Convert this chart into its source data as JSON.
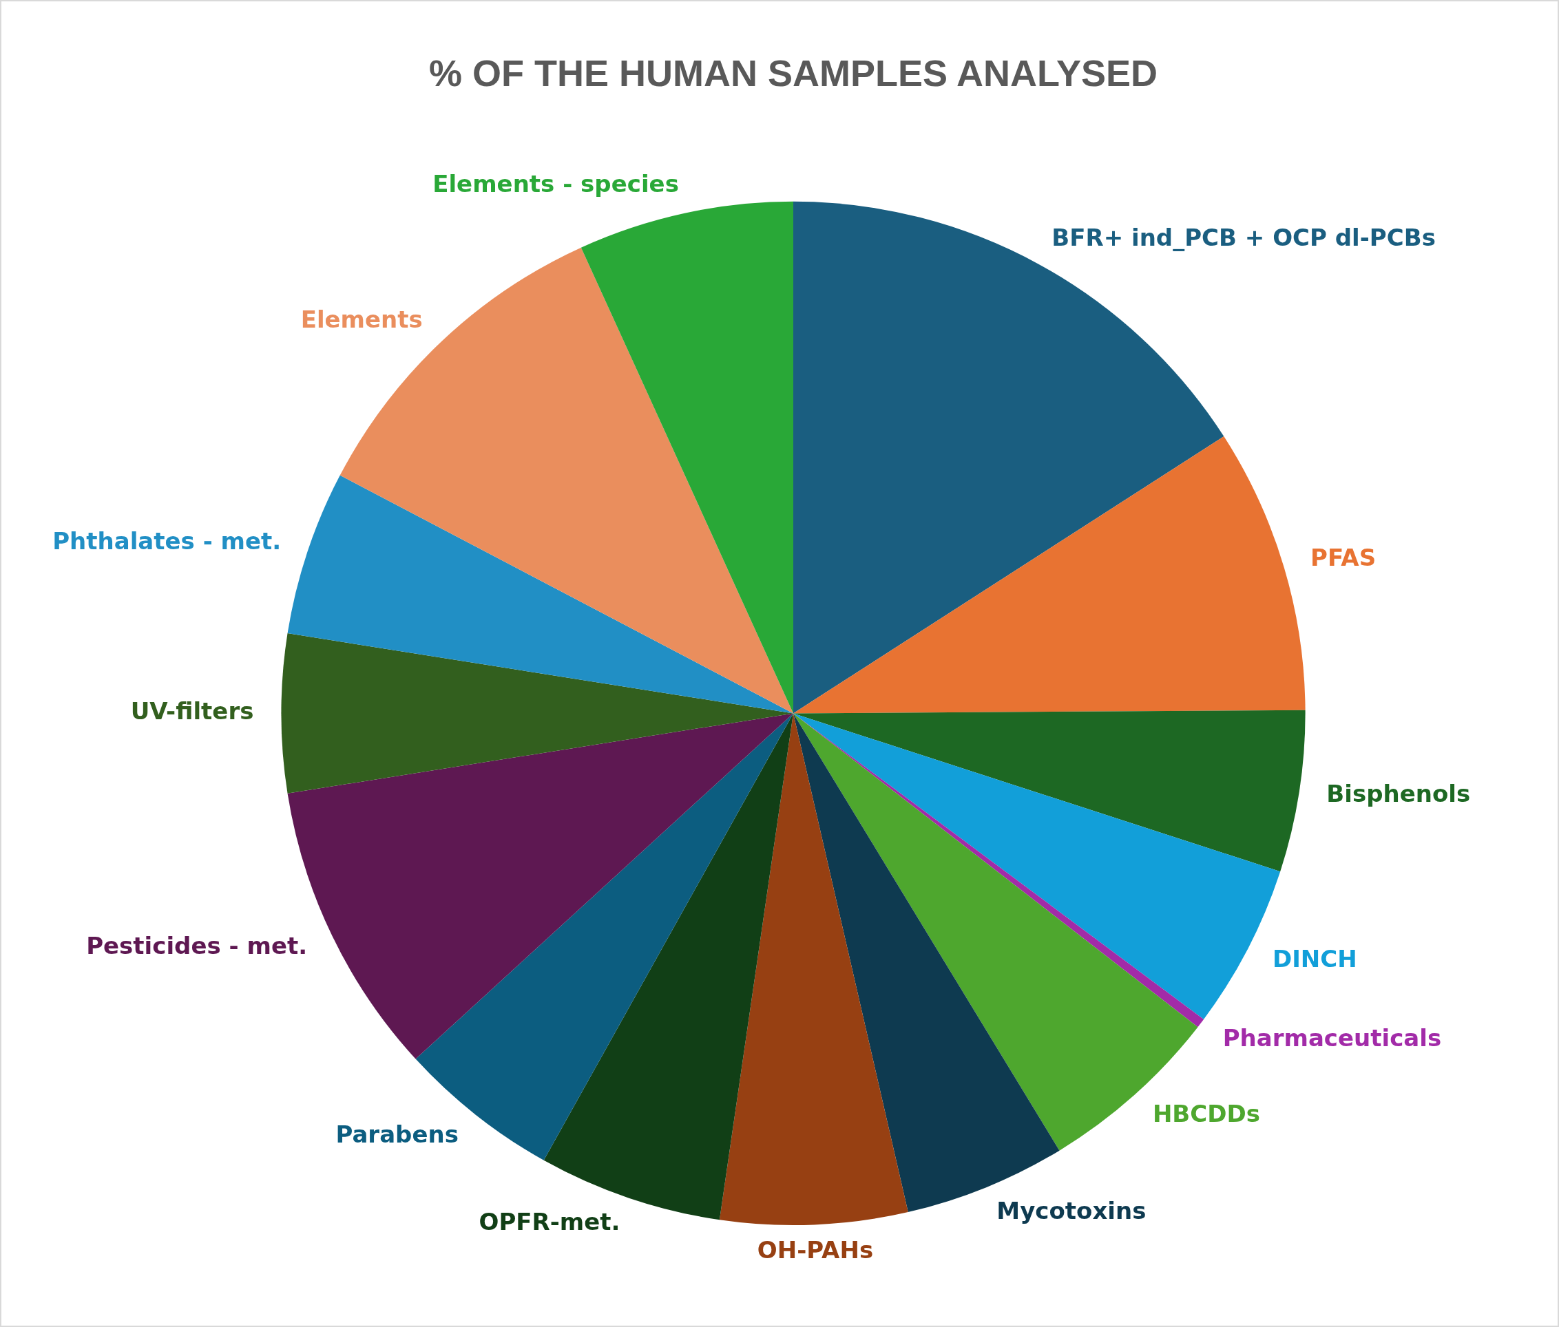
{
  "chart_data": {
    "type": "pie",
    "title": "% OF THE HUMAN SAMPLES ANALYSED",
    "categories": [
      "BFR+ ind_PCB + OCP dl-PCBs",
      "PFAS",
      "Bisphenols",
      "DINCH",
      "Pharmaceuticals",
      "HBCDDs",
      "Mycotoxins",
      "OH-PAHs",
      "OPFR-met.",
      "Parabens",
      "Pesticides - met.",
      "UV-filters",
      "Phthalates - met.",
      "Elements",
      "Elements - species"
    ],
    "values": [
      15.9,
      9.0,
      5.1,
      5.2,
      0.3,
      5.8,
      5.1,
      5.9,
      5.8,
      5.1,
      9.3,
      5.0,
      5.2,
      10.5,
      6.8
    ],
    "colors": [
      "#1a5e80",
      "#e87332",
      "#1d6823",
      "#129fd9",
      "#a22ba8",
      "#4ea72e",
      "#0e3a50",
      "#974012",
      "#113f16",
      "#0c5d80",
      "#5e1852",
      "#325f1e",
      "#218fc5",
      "#ea8e5d",
      "#29a837"
    ],
    "legend": false
  }
}
